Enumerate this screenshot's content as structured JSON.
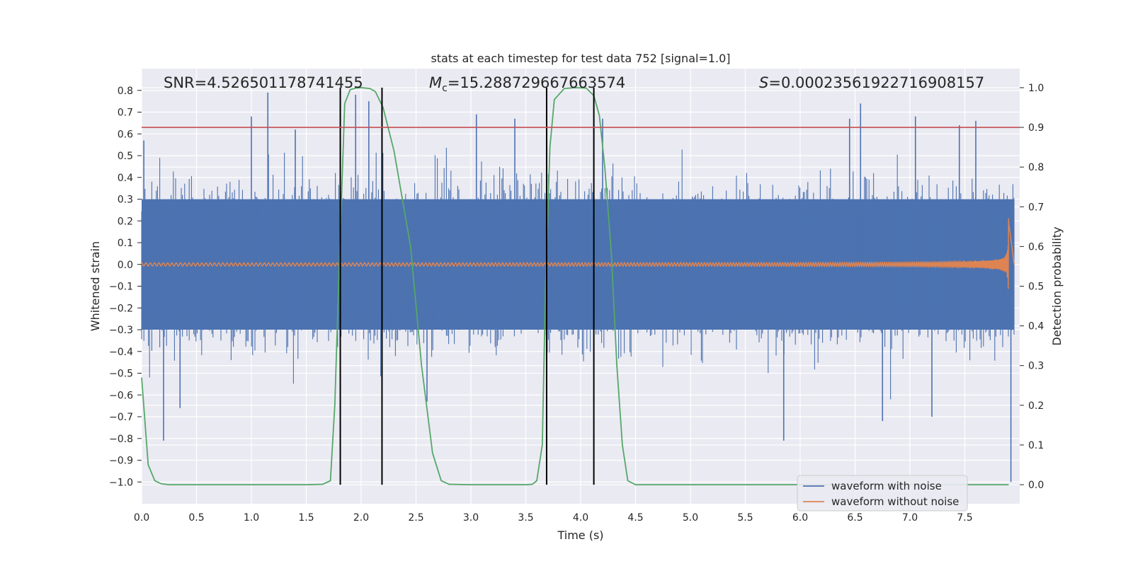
{
  "chart_data": {
    "type": "line",
    "title": "stats at each timestep for test data 752 [signal=1.0]",
    "xlabel": "Time (s)",
    "ylabel": "Whitened strain",
    "y2label": "Detection probability",
    "xlim": [
      0.0,
      8.0
    ],
    "ylim": [
      -1.1,
      0.9
    ],
    "y2lim": [
      -0.048,
      1.048
    ],
    "x_ticks": [
      "0.0",
      "0.5",
      "1.0",
      "1.5",
      "2.0",
      "2.5",
      "3.0",
      "3.5",
      "4.0",
      "4.5",
      "5.0",
      "5.5",
      "6.0",
      "6.5",
      "7.0",
      "7.5"
    ],
    "y_ticks": [
      "0.8",
      "0.7",
      "0.6",
      "0.5",
      "0.4",
      "0.3",
      "0.2",
      "0.1",
      "0.0",
      "−0.1",
      "−0.2",
      "−0.3",
      "−0.4",
      "−0.5",
      "−0.6",
      "−0.7",
      "−0.8",
      "−0.9",
      "−1.0"
    ],
    "y2_ticks": [
      "1.0",
      "0.9",
      "0.8",
      "0.7",
      "0.6",
      "0.5",
      "0.4",
      "0.3",
      "0.2",
      "0.1",
      "0.0"
    ],
    "grid": true,
    "legend_placement": "lower-right",
    "annotations": {
      "snr": "SNR=4.526501178741455",
      "mc_symbol": "M",
      "mc_sub": "c",
      "mc_value": "=15.288729667663574",
      "s_symbol": "S",
      "s_value": "=0.0002356192271690815​7"
    },
    "threshold": {
      "y2": 0.9,
      "color": "#c44e52"
    },
    "vlines_x": [
      1.81,
      2.19,
      3.69,
      4.12
    ],
    "series": [
      {
        "name": "waveform with noise",
        "color": "#4c72b0",
        "axis": "left",
        "noise_band": [
          -0.3,
          0.3
        ],
        "spikes": [
          {
            "x": 0.02,
            "y": 0.57
          },
          {
            "x": 0.2,
            "y": -0.81
          },
          {
            "x": 0.35,
            "y": -0.66
          },
          {
            "x": 1.0,
            "y": 0.68
          },
          {
            "x": 1.15,
            "y": 0.79
          },
          {
            "x": 1.4,
            "y": 0.62
          },
          {
            "x": 1.95,
            "y": 0.78
          },
          {
            "x": 2.07,
            "y": 0.75
          },
          {
            "x": 2.6,
            "y": -0.63
          },
          {
            "x": 3.05,
            "y": 0.69
          },
          {
            "x": 3.4,
            "y": 0.67
          },
          {
            "x": 4.2,
            "y": 0.67
          },
          {
            "x": 5.85,
            "y": -0.81
          },
          {
            "x": 6.45,
            "y": 0.67
          },
          {
            "x": 6.55,
            "y": 0.74
          },
          {
            "x": 6.75,
            "y": -0.72
          },
          {
            "x": 7.05,
            "y": 0.68
          },
          {
            "x": 7.2,
            "y": -0.7
          },
          {
            "x": 7.45,
            "y": 0.64
          },
          {
            "x": 7.6,
            "y": 0.66
          },
          {
            "x": 7.92,
            "y": -1.0
          }
        ]
      },
      {
        "name": "waveform without noise",
        "color": "#dd8452",
        "axis": "left",
        "merger_x": 7.9,
        "peak_amplitude": 0.28
      },
      {
        "name": "detection probability",
        "color": "#55a868",
        "axis": "right",
        "x": [
          0.0,
          0.06,
          0.12,
          0.18,
          0.25,
          0.5,
          1.0,
          1.5,
          1.65,
          1.72,
          1.76,
          1.8,
          1.85,
          1.9,
          1.95,
          2.0,
          2.08,
          2.13,
          2.2,
          2.3,
          2.45,
          2.55,
          2.65,
          2.73,
          2.8,
          3.0,
          3.5,
          3.56,
          3.6,
          3.65,
          3.68,
          3.72,
          3.76,
          3.85,
          3.95,
          4.05,
          4.12,
          4.17,
          4.22,
          4.28,
          4.33,
          4.38,
          4.43,
          4.5,
          5.0,
          6.0,
          7.0,
          7.9
        ],
        "values": [
          0.27,
          0.05,
          0.01,
          0.002,
          0.0,
          0.0,
          0.0,
          0.0,
          0.001,
          0.01,
          0.2,
          0.55,
          0.96,
          0.995,
          0.999,
          1.0,
          0.998,
          0.99,
          0.95,
          0.84,
          0.6,
          0.3,
          0.08,
          0.01,
          0.001,
          0.0,
          0.0,
          0.001,
          0.01,
          0.1,
          0.5,
          0.85,
          0.97,
          0.998,
          1.0,
          0.999,
          0.98,
          0.93,
          0.8,
          0.58,
          0.3,
          0.1,
          0.01,
          0.0,
          0.0,
          0.0,
          0.0,
          0.0
        ]
      }
    ]
  }
}
